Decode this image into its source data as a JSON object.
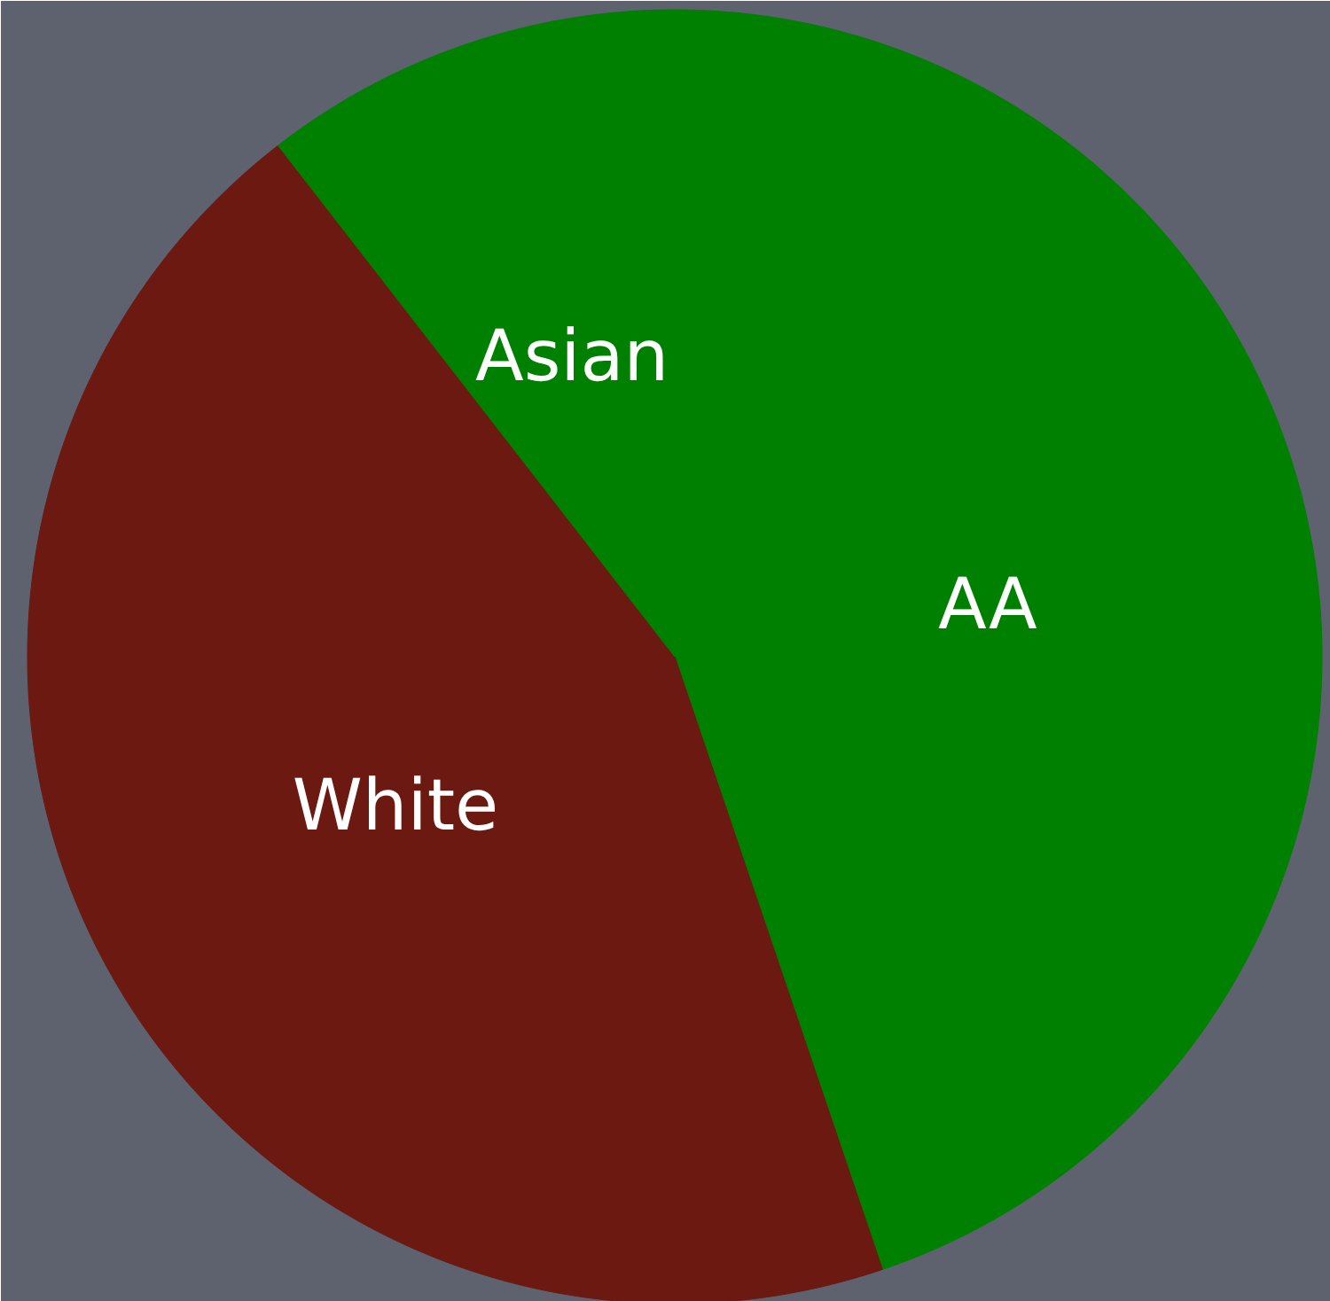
{
  "chart_data": {
    "type": "pie",
    "categories": [
      "AA",
      "White",
      "Asian"
    ],
    "values": [
      44.8,
      44.7,
      10.5
    ],
    "colors": [
      "#008000",
      "#6b1911",
      "#008000"
    ]
  }
}
